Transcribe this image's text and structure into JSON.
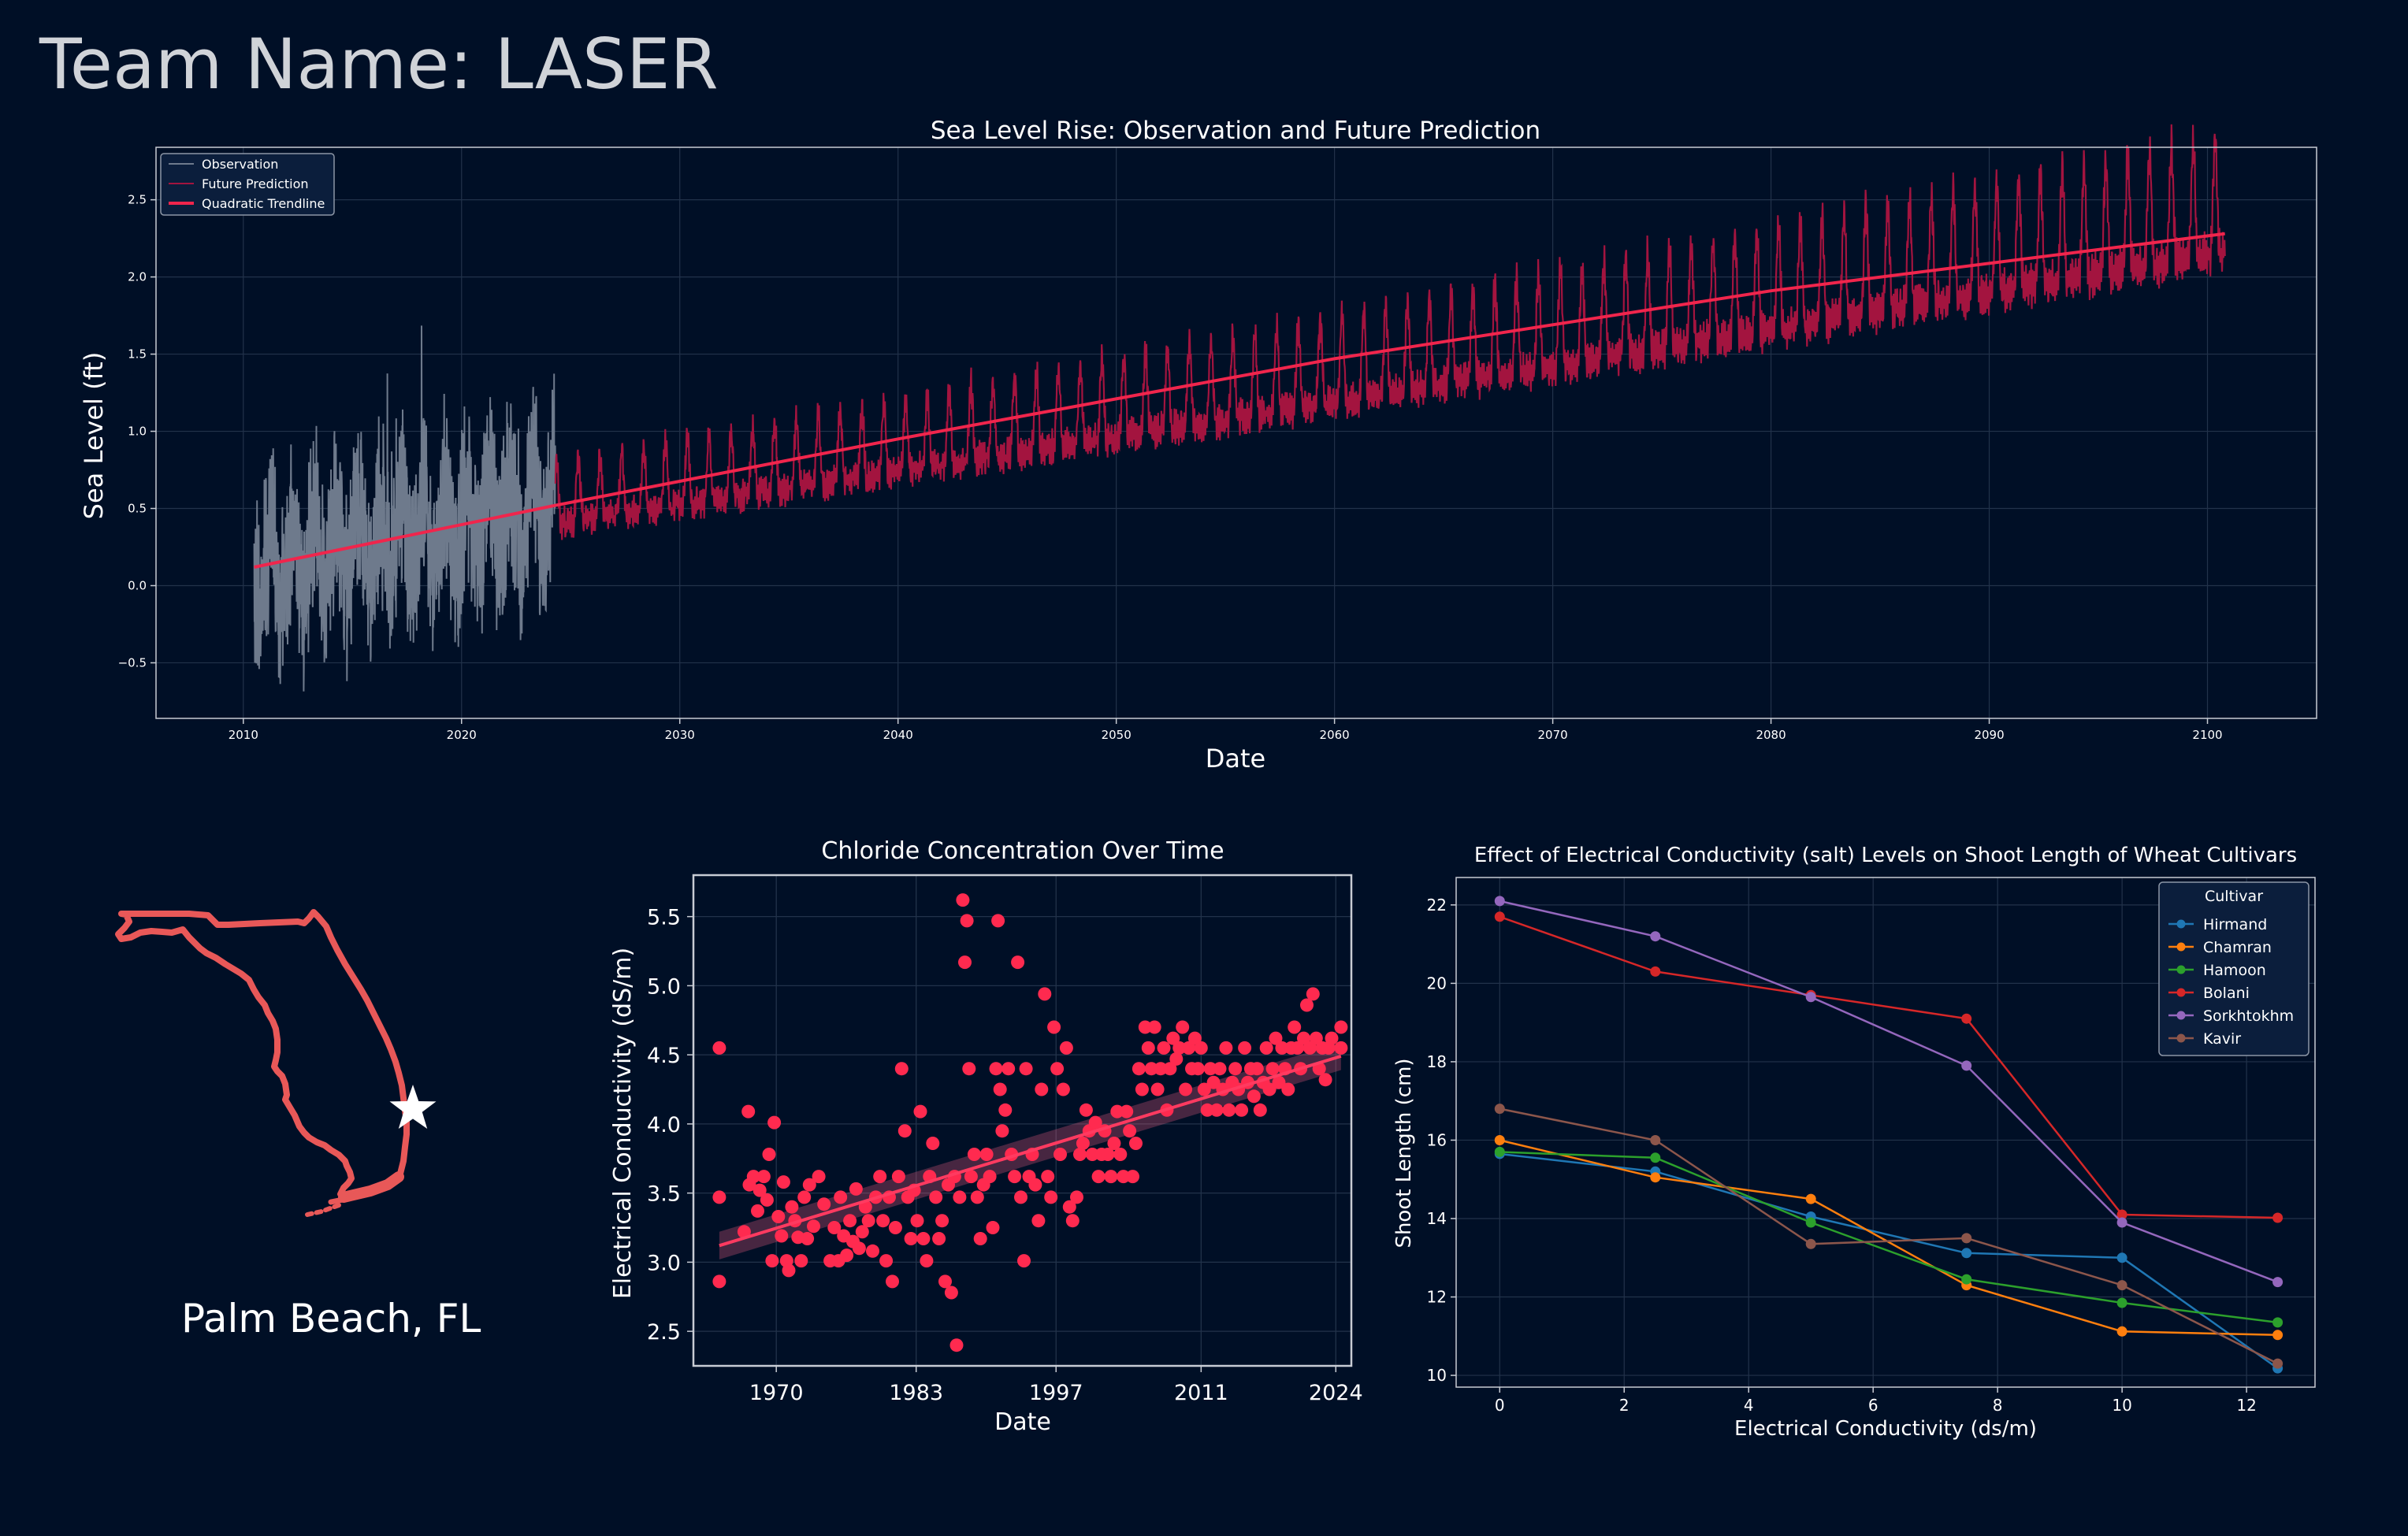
{
  "page": {
    "title": "Team Name: LASER",
    "location_label": "Palm Beach, FL"
  },
  "colors": {
    "background": "#000f26",
    "observation": "#6e7a8c",
    "prediction": "#a3143f",
    "trendline": "#f0254c",
    "chloride_points": "#ff2a4f",
    "map_outline": "#e85858",
    "grid": "#22324a",
    "axes": "#c8ccd4"
  },
  "icons": {
    "map": "florida-outline-icon",
    "marker": "star-icon"
  },
  "chart_data": [
    {
      "id": "sea-level",
      "type": "line",
      "title": "Sea Level Rise: Observation and Future Prediction",
      "xlabel": "Date",
      "ylabel": "Sea Level (ft)",
      "xlim": [
        2006,
        2105
      ],
      "ylim": [
        -0.86,
        2.84
      ],
      "xticks": [
        "2010",
        "2020",
        "2030",
        "2040",
        "2050",
        "2060",
        "2070",
        "2080",
        "2090",
        "2100"
      ],
      "yticks": [
        "−0.5",
        "0.0",
        "0.5",
        "1.0",
        "1.5",
        "2.0",
        "2.5"
      ],
      "grid": true,
      "legend_position": "top-left",
      "series": [
        {
          "name": "Observation",
          "x_range": [
            2010.5,
            2024.3
          ],
          "baseline_trend": [
            0.12,
            0.52
          ],
          "amplitude": [
            -0.8,
            1.3
          ]
        },
        {
          "name": "Future Prediction",
          "x_range": [
            2024.3,
            2100.8
          ],
          "baseline_trend": [
            0.52,
            2.28
          ],
          "amplitude": [
            -0.15,
            0.55
          ]
        },
        {
          "name": "Quadratic Trendline",
          "x": [
            2010.5,
            2024.3,
            2040,
            2060,
            2080,
            2100.8
          ],
          "values": [
            0.12,
            0.52,
            0.95,
            1.47,
            1.91,
            2.28
          ]
        }
      ]
    },
    {
      "id": "chloride",
      "type": "scatter",
      "title": "Chloride Concentration Over Time",
      "xlabel": "Date",
      "ylabel": "Electrical Conductivity (dS/m)",
      "xlim": [
        1962,
        2025.5
      ],
      "ylim": [
        2.25,
        5.8
      ],
      "xticks": [
        "1970",
        "1983",
        "1997",
        "2011",
        "2024"
      ],
      "xtick_values": [
        1970,
        1983.5,
        1997,
        2011,
        2024
      ],
      "yticks": [
        "2.5",
        "3.0",
        "3.5",
        "4.0",
        "4.5",
        "5.0",
        "5.5"
      ],
      "grid": true,
      "trend": {
        "x": [
          1964.5,
          2024.5
        ],
        "values": [
          3.12,
          4.49
        ],
        "band": 0.1
      },
      "points": [
        [
          1964.5,
          4.55
        ],
        [
          1964.5,
          3.47
        ],
        [
          1964.5,
          2.86
        ],
        [
          1966.9,
          3.22
        ],
        [
          1967.3,
          4.09
        ],
        [
          1967.4,
          3.56
        ],
        [
          1967.8,
          3.62
        ],
        [
          1968.2,
          3.37
        ],
        [
          1968.4,
          3.52
        ],
        [
          1968.8,
          3.62
        ],
        [
          1969.1,
          3.45
        ],
        [
          1969.3,
          3.78
        ],
        [
          1969.6,
          3.01
        ],
        [
          1969.8,
          4.01
        ],
        [
          1970.2,
          3.33
        ],
        [
          1970.5,
          3.19
        ],
        [
          1970.7,
          3.58
        ],
        [
          1971,
          3.01
        ],
        [
          1971.2,
          2.94
        ],
        [
          1971.5,
          3.4
        ],
        [
          1971.8,
          3.3
        ],
        [
          1972.1,
          3.18
        ],
        [
          1972.4,
          3.01
        ],
        [
          1972.7,
          3.47
        ],
        [
          1973,
          3.17
        ],
        [
          1973.2,
          3.56
        ],
        [
          1973.6,
          3.26
        ],
        [
          1974.1,
          3.62
        ],
        [
          1974.6,
          3.42
        ],
        [
          1975.2,
          3.01
        ],
        [
          1975.6,
          3.25
        ],
        [
          1976,
          3.01
        ],
        [
          1976.2,
          3.47
        ],
        [
          1976.5,
          3.19
        ],
        [
          1976.8,
          3.05
        ],
        [
          1977.1,
          3.3
        ],
        [
          1977.4,
          3.15
        ],
        [
          1977.7,
          3.53
        ],
        [
          1978,
          3.1
        ],
        [
          1978.3,
          3.22
        ],
        [
          1978.6,
          3.4
        ],
        [
          1978.9,
          3.3
        ],
        [
          1979.3,
          3.08
        ],
        [
          1979.6,
          3.47
        ],
        [
          1980,
          3.62
        ],
        [
          1980.3,
          3.3
        ],
        [
          1980.6,
          3.01
        ],
        [
          1980.9,
          3.47
        ],
        [
          1981.2,
          2.86
        ],
        [
          1981.5,
          3.25
        ],
        [
          1981.8,
          3.62
        ],
        [
          1982.1,
          4.4
        ],
        [
          1982.4,
          3.95
        ],
        [
          1982.7,
          3.47
        ],
        [
          1983,
          3.17
        ],
        [
          1983.3,
          3.52
        ],
        [
          1983.6,
          3.3
        ],
        [
          1983.9,
          4.09
        ],
        [
          1984.2,
          3.17
        ],
        [
          1984.5,
          3.01
        ],
        [
          1984.8,
          3.62
        ],
        [
          1985.1,
          3.86
        ],
        [
          1985.4,
          3.47
        ],
        [
          1985.7,
          3.17
        ],
        [
          1986,
          3.3
        ],
        [
          1986.3,
          2.86
        ],
        [
          1986.6,
          3.56
        ],
        [
          1986.9,
          2.78
        ],
        [
          1987.2,
          3.62
        ],
        [
          1987.4,
          2.4
        ],
        [
          1987.7,
          3.47
        ],
        [
          1988,
          5.62
        ],
        [
          1988.2,
          5.17
        ],
        [
          1988.4,
          5.47
        ],
        [
          1988.6,
          4.4
        ],
        [
          1988.8,
          3.62
        ],
        [
          1989.1,
          3.78
        ],
        [
          1989.4,
          3.47
        ],
        [
          1989.7,
          3.17
        ],
        [
          1990,
          3.56
        ],
        [
          1990.3,
          3.78
        ],
        [
          1990.6,
          3.62
        ],
        [
          1990.9,
          3.25
        ],
        [
          1991.2,
          4.4
        ],
        [
          1991.4,
          5.47
        ],
        [
          1991.6,
          4.25
        ],
        [
          1991.8,
          3.95
        ],
        [
          1992.1,
          4.1
        ],
        [
          1992.4,
          4.4
        ],
        [
          1992.7,
          3.78
        ],
        [
          1993,
          3.62
        ],
        [
          1993.3,
          5.17
        ],
        [
          1993.6,
          3.47
        ],
        [
          1993.9,
          3.01
        ],
        [
          1994.1,
          4.4
        ],
        [
          1994.4,
          3.62
        ],
        [
          1994.7,
          3.78
        ],
        [
          1995,
          3.56
        ],
        [
          1995.3,
          3.3
        ],
        [
          1995.6,
          4.25
        ],
        [
          1995.9,
          4.94
        ],
        [
          1996.2,
          3.62
        ],
        [
          1996.5,
          3.47
        ],
        [
          1996.8,
          4.7
        ],
        [
          1997.1,
          4.4
        ],
        [
          1997.4,
          3.78
        ],
        [
          1997.7,
          4.25
        ],
        [
          1998,
          4.55
        ],
        [
          1998.3,
          3.4
        ],
        [
          1998.6,
          3.3
        ],
        [
          1999,
          3.47
        ],
        [
          1999.3,
          3.78
        ],
        [
          1999.6,
          3.86
        ],
        [
          1999.9,
          4.1
        ],
        [
          2000.2,
          3.95
        ],
        [
          2000.5,
          3.78
        ],
        [
          2000.8,
          4.01
        ],
        [
          2001.1,
          3.62
        ],
        [
          2001.4,
          3.78
        ],
        [
          2001.7,
          3.95
        ],
        [
          2002,
          3.78
        ],
        [
          2002.3,
          3.62
        ],
        [
          2002.6,
          3.86
        ],
        [
          2002.9,
          4.09
        ],
        [
          2003.2,
          3.78
        ],
        [
          2003.5,
          3.62
        ],
        [
          2003.8,
          4.09
        ],
        [
          2004.1,
          3.95
        ],
        [
          2004.4,
          3.62
        ],
        [
          2004.7,
          3.86
        ],
        [
          2005,
          4.4
        ],
        [
          2005.3,
          4.25
        ],
        [
          2005.6,
          4.7
        ],
        [
          2005.9,
          4.55
        ],
        [
          2006.2,
          4.4
        ],
        [
          2006.5,
          4.7
        ],
        [
          2006.8,
          4.25
        ],
        [
          2007.1,
          4.4
        ],
        [
          2007.4,
          4.55
        ],
        [
          2007.7,
          4.1
        ],
        [
          2008,
          4.4
        ],
        [
          2008.3,
          4.62
        ],
        [
          2008.6,
          4.47
        ],
        [
          2008.9,
          4.55
        ],
        [
          2009.2,
          4.7
        ],
        [
          2009.5,
          4.25
        ],
        [
          2009.8,
          4.55
        ],
        [
          2010.1,
          4.4
        ],
        [
          2010.4,
          4.62
        ],
        [
          2010.7,
          4.4
        ],
        [
          2011,
          4.55
        ],
        [
          2011.3,
          4.25
        ],
        [
          2011.6,
          4.1
        ],
        [
          2011.9,
          4.4
        ],
        [
          2012.2,
          4.3
        ],
        [
          2012.5,
          4.1
        ],
        [
          2012.8,
          4.4
        ],
        [
          2013.1,
          4.25
        ],
        [
          2013.4,
          4.55
        ],
        [
          2013.7,
          4.1
        ],
        [
          2014,
          4.3
        ],
        [
          2014.3,
          4.4
        ],
        [
          2014.6,
          4.25
        ],
        [
          2014.9,
          4.1
        ],
        [
          2015.2,
          4.55
        ],
        [
          2015.5,
          4.3
        ],
        [
          2015.8,
          4.4
        ],
        [
          2016.1,
          4.2
        ],
        [
          2016.4,
          4.4
        ],
        [
          2016.7,
          4.1
        ],
        [
          2017,
          4.3
        ],
        [
          2017.3,
          4.55
        ],
        [
          2017.6,
          4.25
        ],
        [
          2017.9,
          4.4
        ],
        [
          2018.2,
          4.62
        ],
        [
          2018.5,
          4.3
        ],
        [
          2018.8,
          4.55
        ],
        [
          2019.1,
          4.4
        ],
        [
          2019.4,
          4.25
        ],
        [
          2019.7,
          4.55
        ],
        [
          2020,
          4.7
        ],
        [
          2020.3,
          4.55
        ],
        [
          2020.6,
          4.4
        ],
        [
          2020.9,
          4.62
        ],
        [
          2021.2,
          4.86
        ],
        [
          2021.5,
          4.55
        ],
        [
          2021.8,
          4.94
        ],
        [
          2022.1,
          4.62
        ],
        [
          2022.4,
          4.4
        ],
        [
          2022.7,
          4.55
        ],
        [
          2023,
          4.32
        ],
        [
          2023.3,
          4.55
        ],
        [
          2023.6,
          4.62
        ],
        [
          2024.5,
          4.7
        ],
        [
          2024.5,
          4.55
        ]
      ]
    },
    {
      "id": "shoot-length",
      "type": "line",
      "title": "Effect of Electrical Conductivity (salt) Levels on Shoot Length of Wheat Cultivars",
      "xlabel": "Electrical Conductivity (ds/m)",
      "ylabel": "Shoot Length (cm)",
      "xlim": [
        -0.7,
        13.1
      ],
      "ylim": [
        9.7,
        22.7
      ],
      "xticks": [
        "0",
        "2",
        "4",
        "6",
        "8",
        "10",
        "12"
      ],
      "yticks": [
        "10",
        "12",
        "14",
        "16",
        "18",
        "20",
        "22"
      ],
      "grid": true,
      "legend_title": "Cultivar",
      "legend_position": "top-right",
      "x": [
        0,
        2.5,
        5,
        7.5,
        10,
        12.5
      ],
      "series": [
        {
          "name": "Hirmand",
          "color": "#1f77b4",
          "values": [
            15.65,
            15.2,
            14.05,
            13.12,
            13.0,
            10.18
          ]
        },
        {
          "name": "Chamran",
          "color": "#ff7f0e",
          "values": [
            16.0,
            15.05,
            14.5,
            12.3,
            11.12,
            11.03
          ]
        },
        {
          "name": "Hamoon",
          "color": "#2ca02c",
          "values": [
            15.7,
            15.55,
            13.9,
            12.45,
            11.85,
            11.35
          ]
        },
        {
          "name": "Bolani",
          "color": "#d62728",
          "values": [
            21.7,
            20.3,
            19.7,
            19.1,
            14.1,
            14.02
          ]
        },
        {
          "name": "Sorkhtokhm",
          "color": "#9467bd",
          "values": [
            22.1,
            21.2,
            19.65,
            17.9,
            13.9,
            12.38
          ]
        },
        {
          "name": "Kavir",
          "color": "#8c564b",
          "values": [
            16.8,
            16.0,
            13.35,
            13.5,
            12.3,
            10.3
          ]
        }
      ]
    }
  ]
}
